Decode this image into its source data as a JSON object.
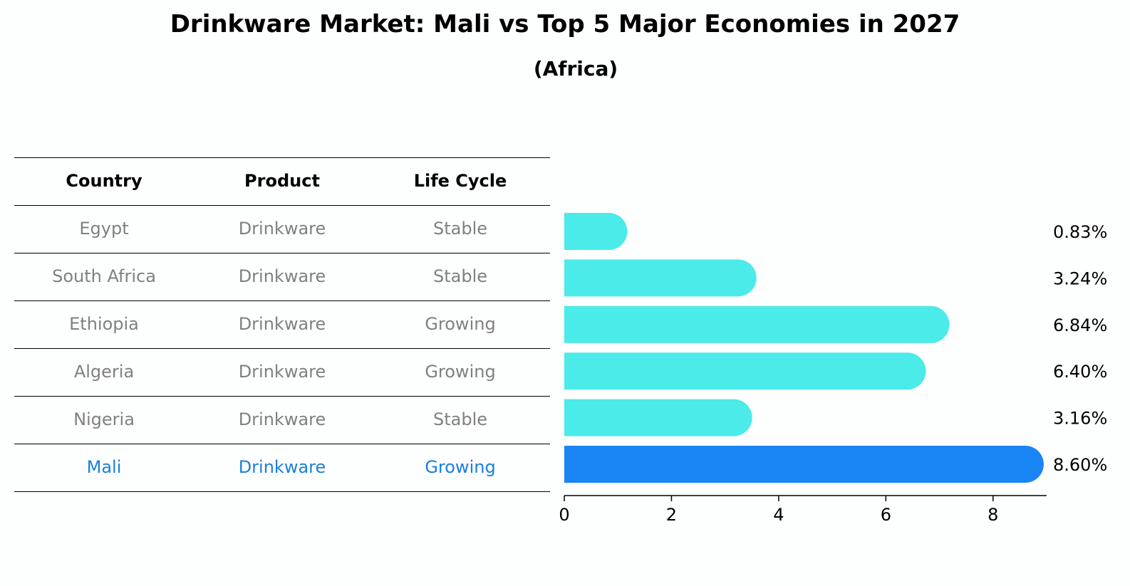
{
  "title": "Drinkware Market: Mali vs Top 5 Major Economies in 2027",
  "subtitle": "(Africa)",
  "table": {
    "headers": [
      "Country",
      "Product",
      "Life Cycle"
    ],
    "rows": [
      [
        "Egypt",
        "Drinkware",
        "Stable"
      ],
      [
        "South Africa",
        "Drinkware",
        "Stable"
      ],
      [
        "Ethiopia",
        "Drinkware",
        "Growing"
      ],
      [
        "Algeria",
        "Drinkware",
        "Growing"
      ],
      [
        "Nigeria",
        "Drinkware",
        "Stable"
      ],
      [
        "Mali",
        "Drinkware",
        "Growing"
      ]
    ],
    "highlight_row": 5
  },
  "colors": {
    "bar": "#4aebe8",
    "highlight": "#1a85f5",
    "muted_text": "#808080",
    "highlight_text": "#1a7fe0"
  },
  "chart_data": {
    "type": "bar",
    "orientation": "horizontal",
    "categories": [
      "Egypt",
      "South Africa",
      "Ethiopia",
      "Algeria",
      "Nigeria",
      "Mali"
    ],
    "values": [
      0.83,
      3.24,
      6.84,
      6.4,
      3.16,
      8.6
    ],
    "value_labels": [
      "0.83%",
      "3.24%",
      "6.84%",
      "6.40%",
      "3.16%",
      "8.60%"
    ],
    "xlim": [
      0,
      9
    ],
    "xticks": [
      0,
      2,
      4,
      6,
      8
    ],
    "xtick_labels": [
      "0",
      "2",
      "4",
      "6",
      "8"
    ],
    "highlight": "Mali",
    "grid": false
  }
}
